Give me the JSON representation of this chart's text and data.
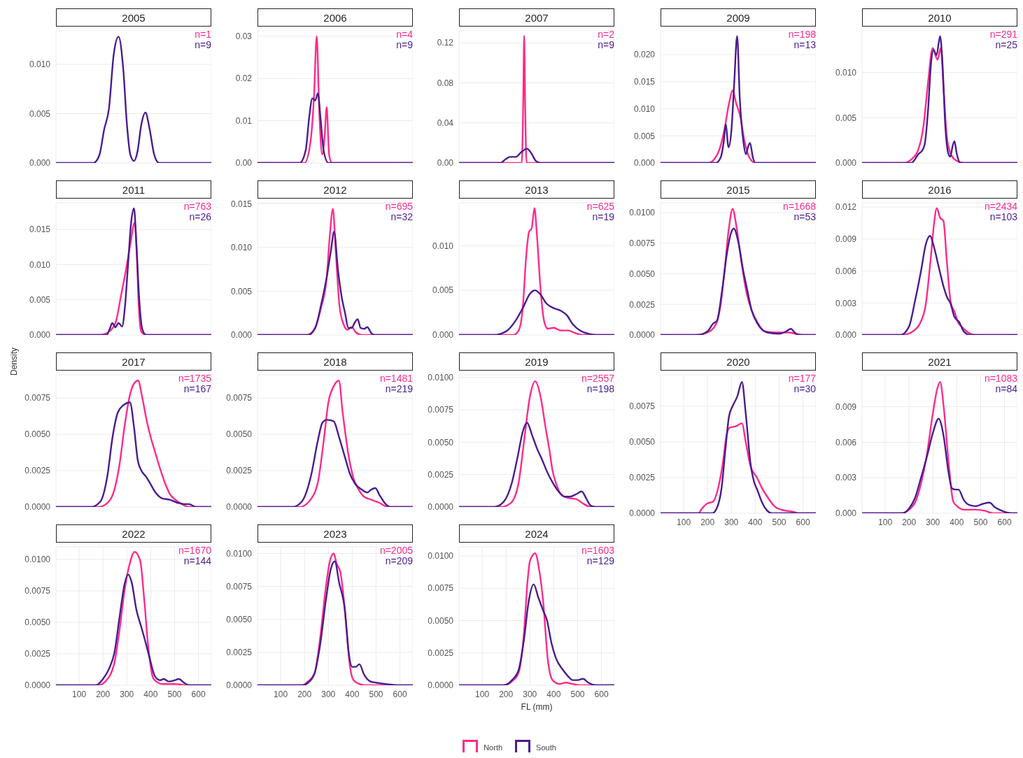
{
  "chart_data": [
    {
      "type": "line",
      "title": "2005",
      "annotations": [
        "n=1",
        "n=9"
      ],
      "xlim": [
        3,
        654
      ],
      "xticks": [
        100,
        200,
        300,
        400,
        500,
        600
      ],
      "ylim": [
        0,
        0.0134
      ],
      "yticks": [
        {
          "value": 0,
          "label": "0.000"
        },
        {
          "value": 0.005,
          "label": "0.005"
        },
        {
          "value": 0.01,
          "label": "0.010"
        }
      ],
      "tick_labels": "y",
      "grid": true,
      "series": [
        {
          "color": "#ff2a8a"
        },
        {
          "color": "#4a1c91",
          "x": [
            3,
            160,
            185,
            205,
            225,
            245,
            265,
            285,
            300,
            315,
            330,
            345,
            360,
            378,
            395,
            415,
            435,
            654
          ],
          "values": [
            0,
            0,
            0.0008,
            0.0034,
            0.0055,
            0.011,
            0.0128,
            0.0095,
            0.004,
            0.0008,
            0.0002,
            0.0012,
            0.0038,
            0.0051,
            0.0035,
            0.0008,
            0,
            0
          ]
        }
      ]
    },
    {
      "type": "line",
      "title": "2006",
      "annotations": [
        "n=4",
        "n=9"
      ],
      "xlim": [
        3,
        654
      ],
      "xticks": [
        100,
        200,
        300,
        400,
        500,
        600
      ],
      "ylim": [
        0,
        0.0313
      ],
      "yticks": [
        {
          "value": 0,
          "label": "0.00"
        },
        {
          "value": 0.01,
          "label": "0.01"
        },
        {
          "value": 0.02,
          "label": "0.02"
        },
        {
          "value": 0.03,
          "label": "0.03"
        }
      ],
      "tick_labels": "y",
      "grid": true,
      "series": [
        {
          "color": "#ff2a8a",
          "x": [
            3,
            200,
            225,
            240,
            251,
            262,
            274,
            284,
            293,
            303,
            315,
            654
          ],
          "values": [
            0,
            0,
            0.005,
            0.016,
            0.03,
            0.012,
            0.002,
            0.006,
            0.0132,
            0.002,
            0,
            0
          ]
        },
        {
          "color": "#4a1c91",
          "x": [
            3,
            180,
            205,
            220,
            233,
            245,
            256,
            268,
            280,
            300,
            654
          ],
          "values": [
            0,
            0,
            0.003,
            0.011,
            0.0153,
            0.0148,
            0.0165,
            0.01,
            0.003,
            0,
            0
          ]
        }
      ]
    },
    {
      "type": "line",
      "title": "2007",
      "annotations": [
        "n=2",
        "n=9"
      ],
      "xlim": [
        3,
        654
      ],
      "xticks": [
        100,
        200,
        300,
        400,
        500,
        600
      ],
      "ylim": [
        0,
        0.132
      ],
      "yticks": [
        {
          "value": 0,
          "label": "0.00"
        },
        {
          "value": 0.04,
          "label": "0.04"
        },
        {
          "value": 0.08,
          "label": "0.08"
        },
        {
          "value": 0.12,
          "label": "0.12"
        }
      ],
      "tick_labels": "y",
      "grid": true,
      "series": [
        {
          "color": "#ff2a8a",
          "x": [
            3,
            266,
            272,
            276,
            280,
            286,
            654
          ],
          "values": [
            0,
            0,
            0.06,
            0.127,
            0.06,
            0,
            0
          ]
        },
        {
          "color": "#4a1c91",
          "x": [
            3,
            175,
            200,
            216,
            240,
            265,
            288,
            305,
            325,
            345,
            654
          ],
          "values": [
            0,
            0,
            0.004,
            0.006,
            0.006,
            0.011,
            0.0142,
            0.01,
            0.002,
            0,
            0
          ]
        }
      ]
    },
    {
      "type": "line",
      "title": "2009",
      "annotations": [
        "n=198",
        "n=13"
      ],
      "xlim": [
        3,
        654
      ],
      "xticks": [
        100,
        200,
        300,
        400,
        500,
        600
      ],
      "ylim": [
        0,
        0.0244
      ],
      "yticks": [
        {
          "value": 0,
          "label": "0.000"
        },
        {
          "value": 0.005,
          "label": "0.005"
        },
        {
          "value": 0.01,
          "label": "0.010"
        },
        {
          "value": 0.015,
          "label": "0.015"
        },
        {
          "value": 0.02,
          "label": "0.020"
        }
      ],
      "tick_labels": "y",
      "grid": true,
      "series": [
        {
          "color": "#ff2a8a",
          "x": [
            3,
            205,
            230,
            250,
            270,
            290,
            305,
            320,
            336,
            355,
            375,
            400,
            654
          ],
          "values": [
            0,
            0,
            0.0008,
            0.0025,
            0.006,
            0.011,
            0.0134,
            0.011,
            0.0088,
            0.004,
            0.001,
            0,
            0
          ]
        },
        {
          "color": "#4a1c91",
          "x": [
            3,
            235,
            255,
            268,
            276,
            288,
            300,
            312,
            324,
            335,
            350,
            361,
            370,
            378,
            390,
            400,
            654
          ],
          "values": [
            0,
            0,
            0.001,
            0.004,
            0.0071,
            0.0029,
            0.006,
            0.015,
            0.0234,
            0.012,
            0.004,
            0.0016,
            0.003,
            0.0037,
            0.001,
            0,
            0
          ]
        }
      ]
    },
    {
      "type": "line",
      "title": "2010",
      "annotations": [
        "n=291",
        "n=25"
      ],
      "xlim": [
        3,
        654
      ],
      "xticks": [
        100,
        200,
        300,
        400,
        500,
        600
      ],
      "ylim": [
        0,
        0.0146
      ],
      "yticks": [
        {
          "value": 0,
          "label": "0.000"
        },
        {
          "value": 0.005,
          "label": "0.005"
        },
        {
          "value": 0.01,
          "label": "0.010"
        }
      ],
      "tick_labels": "y",
      "grid": true,
      "series": [
        {
          "color": "#ff2a8a",
          "x": [
            3,
            180,
            210,
            239,
            260,
            280,
            299,
            319,
            333,
            345,
            358,
            373,
            395,
            430,
            654
          ],
          "values": [
            0,
            0,
            0.0004,
            0.0015,
            0.004,
            0.009,
            0.0127,
            0.0114,
            0.0127,
            0.008,
            0.003,
            0.0011,
            0.0003,
            0,
            0
          ]
        },
        {
          "color": "#4a1c91",
          "x": [
            3,
            210,
            240,
            253,
            265,
            280,
            292,
            302,
            315,
            330,
            340,
            352,
            365,
            373,
            382,
            390,
            400,
            415,
            654
          ],
          "values": [
            0,
            0,
            0.001,
            0.0013,
            0.002,
            0.006,
            0.011,
            0.0125,
            0.0119,
            0.014,
            0.011,
            0.004,
            0.001,
            0.0007,
            0.0018,
            0.0024,
            0.001,
            0,
            0
          ]
        }
      ]
    },
    {
      "type": "line",
      "title": "2011",
      "annotations": [
        "n=763",
        "n=26"
      ],
      "xlim": [
        3,
        654
      ],
      "xticks": [
        100,
        200,
        300,
        400,
        500,
        600
      ],
      "ylim": [
        0,
        0.0188
      ],
      "yticks": [
        {
          "value": 0,
          "label": "0.000"
        },
        {
          "value": 0.005,
          "label": "0.005"
        },
        {
          "value": 0.01,
          "label": "0.010"
        },
        {
          "value": 0.015,
          "label": "0.015"
        }
      ],
      "tick_labels": "y",
      "grid": true,
      "series": [
        {
          "color": "#ff2a8a",
          "x": [
            3,
            190,
            230,
            255,
            275,
            295,
            315,
            333,
            342,
            350,
            360,
            380,
            654
          ],
          "values": [
            0,
            0,
            0.0006,
            0.002,
            0.0055,
            0.009,
            0.013,
            0.016,
            0.011,
            0.004,
            0.0005,
            0,
            0
          ]
        },
        {
          "color": "#4a1c91",
          "x": [
            3,
            215,
            230,
            239,
            252,
            265,
            280,
            292,
            305,
            318,
            330,
            340,
            352,
            365,
            380,
            654
          ],
          "values": [
            0,
            0,
            0.001,
            0.0017,
            0.0011,
            0.0017,
            0.0012,
            0.004,
            0.01,
            0.016,
            0.018,
            0.013,
            0.005,
            0.0008,
            0,
            0
          ]
        }
      ]
    },
    {
      "type": "line",
      "title": "2012",
      "annotations": [
        "n=695",
        "n=32"
      ],
      "xlim": [
        3,
        654
      ],
      "xticks": [
        100,
        200,
        300,
        400,
        500,
        600
      ],
      "ylim": [
        0,
        0.0151
      ],
      "yticks": [
        {
          "value": 0,
          "label": "0.000"
        },
        {
          "value": 0.005,
          "label": "0.005"
        },
        {
          "value": 0.01,
          "label": "0.010"
        },
        {
          "value": 0.015,
          "label": "0.015"
        }
      ],
      "tick_labels": "y",
      "grid": true,
      "series": [
        {
          "color": "#ff2a8a",
          "x": [
            3,
            210,
            240,
            270,
            293,
            305,
            319,
            330,
            347,
            364,
            380,
            398,
            415,
            440,
            654
          ],
          "values": [
            0,
            0,
            0.0006,
            0.0032,
            0.0065,
            0.011,
            0.0144,
            0.01,
            0.0032,
            0.0012,
            0.0006,
            0.0009,
            0.0003,
            0,
            0
          ]
        },
        {
          "color": "#4a1c91",
          "x": [
            3,
            215,
            245,
            270,
            293,
            310,
            324,
            340,
            356,
            370,
            384,
            398,
            410,
            423,
            435,
            450,
            463,
            480,
            495,
            654
          ],
          "values": [
            0,
            0,
            0.0008,
            0.0035,
            0.0066,
            0.0095,
            0.0118,
            0.0075,
            0.0043,
            0.0025,
            0.0008,
            0.0008,
            0.0014,
            0.0018,
            0.0008,
            0.0007,
            0.0009,
            0.0002,
            0,
            0
          ]
        }
      ]
    },
    {
      "type": "line",
      "title": "2013",
      "annotations": [
        "n=625",
        "n=19"
      ],
      "xlim": [
        3,
        654
      ],
      "xticks": [
        100,
        200,
        300,
        400,
        500,
        600
      ],
      "ylim": [
        0,
        0.0148
      ],
      "yticks": [
        {
          "value": 0,
          "label": "0.000"
        },
        {
          "value": 0.005,
          "label": "0.005"
        },
        {
          "value": 0.01,
          "label": "0.010"
        }
      ],
      "tick_labels": "y",
      "grid": true,
      "series": [
        {
          "color": "#ff2a8a",
          "x": [
            3,
            230,
            253,
            270,
            285,
            296,
            308,
            319,
            330,
            345,
            360,
            375,
            400,
            430,
            460,
            490,
            520,
            654
          ],
          "values": [
            0,
            0,
            0.0005,
            0.003,
            0.009,
            0.0115,
            0.012,
            0.0142,
            0.011,
            0.005,
            0.0015,
            0.0007,
            0.0008,
            0.0005,
            0.0005,
            0.0002,
            0,
            0
          ]
        },
        {
          "color": "#4a1c91",
          "x": [
            3,
            150,
            200,
            240,
            270,
            300,
            322,
            345,
            370,
            400,
            430,
            455,
            480,
            510,
            550,
            580,
            654
          ],
          "values": [
            0,
            0,
            0.0004,
            0.0016,
            0.003,
            0.0046,
            0.005,
            0.0045,
            0.0035,
            0.003,
            0.0027,
            0.0022,
            0.0012,
            0.0005,
            0.0001,
            0,
            0
          ]
        }
      ]
    },
    {
      "type": "line",
      "title": "2015",
      "annotations": [
        "n=1668",
        "n=53"
      ],
      "xlim": [
        3,
        654
      ],
      "xticks": [
        100,
        200,
        300,
        400,
        500,
        600
      ],
      "ylim": [
        0,
        0.0108
      ],
      "yticks": [
        {
          "value": 0,
          "label": "0.0000"
        },
        {
          "value": 0.0025,
          "label": "0.0025"
        },
        {
          "value": 0.005,
          "label": "0.0050"
        },
        {
          "value": 0.0075,
          "label": "0.0075"
        },
        {
          "value": 0.01,
          "label": "0.0100"
        }
      ],
      "tick_labels": "y",
      "grid": true,
      "series": [
        {
          "color": "#ff2a8a",
          "x": [
            3,
            150,
            200,
            236,
            255,
            270,
            288,
            305,
            320,
            340,
            364,
            385,
            407,
            440,
            480,
            540,
            570,
            600,
            654
          ],
          "values": [
            0,
            0,
            0.0002,
            0.0009,
            0.0025,
            0.005,
            0.0085,
            0.0103,
            0.009,
            0.0062,
            0.0034,
            0.002,
            0.0011,
            0.0003,
            0.0002,
            0.0002,
            0.0001,
            0,
            0
          ]
        },
        {
          "color": "#4a1c91",
          "x": [
            3,
            160,
            200,
            222,
            240,
            260,
            280,
            298,
            310,
            330,
            350,
            364,
            385,
            410,
            450,
            500,
            530,
            549,
            565,
            580,
            654
          ],
          "values": [
            0,
            0,
            0.0003,
            0.0009,
            0.0012,
            0.0035,
            0.0065,
            0.0083,
            0.0087,
            0.0075,
            0.0052,
            0.0039,
            0.002,
            0.0009,
            0.0002,
            0.0001,
            0.0003,
            0.0005,
            0.0002,
            0,
            0
          ]
        }
      ]
    },
    {
      "type": "line",
      "title": "2016",
      "annotations": [
        "n=2434",
        "n=103"
      ],
      "xlim": [
        3,
        654
      ],
      "xticks": [
        100,
        200,
        300,
        400,
        500,
        600
      ],
      "ylim": [
        0,
        0.0124
      ],
      "yticks": [
        {
          "value": 0,
          "label": "0.000"
        },
        {
          "value": 0.003,
          "label": "0.003"
        },
        {
          "value": 0.006,
          "label": "0.006"
        },
        {
          "value": 0.009,
          "label": "0.009"
        },
        {
          "value": 0.012,
          "label": "0.012"
        }
      ],
      "tick_labels": "y",
      "grid": true,
      "series": [
        {
          "color": "#ff2a8a",
          "x": [
            3,
            170,
            220,
            250,
            268,
            290,
            305,
            316,
            330,
            344,
            358,
            375,
            390,
            405,
            424,
            450,
            480,
            654
          ],
          "values": [
            0,
            0,
            0.0004,
            0.0013,
            0.0026,
            0.007,
            0.0105,
            0.0119,
            0.011,
            0.0107,
            0.007,
            0.003,
            0.0022,
            0.0012,
            0.0007,
            0.0002,
            0,
            0
          ]
        },
        {
          "color": "#4a1c91",
          "x": [
            3,
            165,
            200,
            225,
            250,
            270,
            288,
            305,
            324,
            345,
            360,
            373,
            390,
            410,
            430,
            455,
            654
          ],
          "values": [
            0,
            0,
            0.0008,
            0.0032,
            0.006,
            0.0085,
            0.0093,
            0.0082,
            0.0064,
            0.0045,
            0.0035,
            0.003,
            0.0017,
            0.0012,
            0.0003,
            0,
            0
          ]
        }
      ]
    },
    {
      "type": "line",
      "title": "2017",
      "ylabel": "Density",
      "annotations": [
        "n=1735",
        "n=167"
      ],
      "xlim": [
        3,
        654
      ],
      "xticks": [
        100,
        200,
        300,
        400,
        500,
        600
      ],
      "ylim": [
        0,
        0.0091
      ],
      "yticks": [
        {
          "value": 0,
          "label": "0.0000"
        },
        {
          "value": 0.0025,
          "label": "0.0025"
        },
        {
          "value": 0.005,
          "label": "0.0050"
        },
        {
          "value": 0.0075,
          "label": "0.0075"
        }
      ],
      "tick_labels": "y",
      "grid": true,
      "series": [
        {
          "color": "#ff2a8a",
          "x": [
            3,
            180,
            220,
            248,
            270,
            290,
            310,
            330,
            347,
            365,
            385,
            400,
            418,
            440,
            461,
            480,
            503,
            530,
            560,
            654
          ],
          "values": [
            0,
            0,
            0.0003,
            0.0012,
            0.003,
            0.0055,
            0.0075,
            0.0085,
            0.0087,
            0.0075,
            0.0058,
            0.0048,
            0.0038,
            0.0026,
            0.0016,
            0.0009,
            0.0005,
            0.0002,
            0,
            0
          ]
        },
        {
          "color": "#4a1c91",
          "x": [
            3,
            150,
            190,
            219,
            240,
            262,
            285,
            313,
            330,
            345,
            361,
            380,
            395,
            420,
            447,
            480,
            510,
            540,
            560,
            590,
            654
          ],
          "values": [
            0,
            0,
            0.0004,
            0.0022,
            0.0048,
            0.0065,
            0.007,
            0.0072,
            0.0055,
            0.0033,
            0.0025,
            0.0021,
            0.0017,
            0.001,
            0.0006,
            0.0005,
            0.0003,
            0.0002,
            0.0002,
            0,
            0
          ]
        }
      ]
    },
    {
      "type": "line",
      "title": "2018",
      "annotations": [
        "n=1481",
        "n=219"
      ],
      "xlim": [
        3,
        654
      ],
      "xticks": [
        100,
        200,
        300,
        400,
        500,
        600
      ],
      "ylim": [
        0,
        0.0091
      ],
      "yticks": [
        {
          "value": 0,
          "label": "0.0000"
        },
        {
          "value": 0.0025,
          "label": "0.0025"
        },
        {
          "value": 0.005,
          "label": "0.0050"
        },
        {
          "value": 0.0075,
          "label": "0.0075"
        }
      ],
      "tick_labels": "y",
      "grid": true,
      "series": [
        {
          "color": "#ff2a8a",
          "x": [
            3,
            180,
            220,
            256,
            280,
            300,
            322,
            344,
            360,
            384,
            405,
            427,
            450,
            480,
            512,
            550,
            654
          ],
          "values": [
            0,
            0,
            0.0004,
            0.0017,
            0.0045,
            0.0072,
            0.0083,
            0.0087,
            0.0065,
            0.0036,
            0.002,
            0.0012,
            0.0007,
            0.0005,
            0.0003,
            0,
            0
          ]
        },
        {
          "color": "#4a1c91",
          "x": [
            3,
            150,
            190,
            228,
            255,
            275,
            293,
            322,
            345,
            370,
            390,
            412,
            440,
            463,
            480,
            497,
            515,
            540,
            560,
            654
          ],
          "values": [
            0,
            0,
            0.0004,
            0.0022,
            0.0045,
            0.0058,
            0.006,
            0.0059,
            0.0048,
            0.0034,
            0.0023,
            0.0016,
            0.0012,
            0.001,
            0.0012,
            0.0013,
            0.0008,
            0.0002,
            0,
            0
          ]
        }
      ]
    },
    {
      "type": "line",
      "title": "2019",
      "annotations": [
        "n=2557",
        "n=198"
      ],
      "xlim": [
        3,
        654
      ],
      "xticks": [
        100,
        200,
        300,
        400,
        500,
        600
      ],
      "ylim": [
        0,
        0.0102
      ],
      "yticks": [
        {
          "value": 0,
          "label": "0.0000"
        },
        {
          "value": 0.0025,
          "label": "0.0025"
        },
        {
          "value": 0.005,
          "label": "0.0050"
        },
        {
          "value": 0.0075,
          "label": "0.0075"
        },
        {
          "value": 0.01,
          "label": "0.0100"
        }
      ],
      "tick_labels": "y",
      "grid": true,
      "series": [
        {
          "color": "#ff2a8a",
          "x": [
            3,
            180,
            220,
            253,
            275,
            300,
            322,
            345,
            365,
            381,
            395,
            410,
            430,
            460,
            495,
            520,
            555,
            654
          ],
          "values": [
            0,
            0,
            0.0003,
            0.0019,
            0.005,
            0.0085,
            0.0097,
            0.0085,
            0.0062,
            0.0045,
            0.0028,
            0.0018,
            0.001,
            0.0007,
            0.0006,
            0.0003,
            0,
            0
          ]
        },
        {
          "color": "#4a1c91",
          "x": [
            3,
            150,
            190,
            225,
            250,
            270,
            288,
            310,
            330,
            350,
            370,
            395,
            420,
            445,
            470,
            495,
            517,
            535,
            555,
            575,
            654
          ],
          "values": [
            0,
            0,
            0.0004,
            0.0019,
            0.004,
            0.0058,
            0.0065,
            0.0055,
            0.0045,
            0.0037,
            0.0028,
            0.0019,
            0.0012,
            0.0008,
            0.0008,
            0.001,
            0.0012,
            0.0007,
            0.0001,
            0,
            0
          ]
        }
      ]
    },
    {
      "type": "line",
      "title": "2020",
      "annotations": [
        "n=177",
        "n=30"
      ],
      "xlim": [
        3,
        654
      ],
      "xticks": [
        100,
        200,
        300,
        400,
        500,
        600
      ],
      "ylim": [
        0,
        0.0097
      ],
      "yticks": [
        {
          "value": 0,
          "label": "0.0000"
        },
        {
          "value": 0.0025,
          "label": "0.0025"
        },
        {
          "value": 0.005,
          "label": "0.0050"
        },
        {
          "value": 0.0075,
          "label": "0.0075"
        }
      ],
      "grid": true,
      "series": [
        {
          "color": "#ff2a8a",
          "x": [
            3,
            160,
            180,
            200,
            222,
            245,
            264,
            280,
            293,
            320,
            344,
            360,
            380,
            407,
            430,
            449,
            480,
            520,
            560,
            580,
            654
          ],
          "values": [
            0,
            0,
            0.0004,
            0.0007,
            0.0008,
            0.0018,
            0.0035,
            0.0055,
            0.006,
            0.0061,
            0.0063,
            0.005,
            0.0033,
            0.0025,
            0.0017,
            0.0012,
            0.0005,
            0.0002,
            0.0001,
            0,
            0
          ]
        },
        {
          "color": "#4a1c91",
          "x": [
            3,
            220,
            240,
            259,
            275,
            290,
            305,
            325,
            344,
            360,
            380,
            395,
            407,
            430,
            449,
            470,
            654
          ],
          "values": [
            0,
            0,
            0.0004,
            0.0018,
            0.0045,
            0.0068,
            0.0075,
            0.0082,
            0.0092,
            0.007,
            0.0035,
            0.0022,
            0.0017,
            0.0007,
            0.0002,
            0,
            0
          ]
        }
      ]
    },
    {
      "type": "line",
      "title": "2021",
      "annotations": [
        "n=1083",
        "n=84"
      ],
      "xlim": [
        3,
        654
      ],
      "xticks": [
        100,
        200,
        300,
        400,
        500,
        600
      ],
      "ylim": [
        0,
        0.0117
      ],
      "yticks": [
        {
          "value": 0,
          "label": "0.000"
        },
        {
          "value": 0.003,
          "label": "0.003"
        },
        {
          "value": 0.006,
          "label": "0.006"
        },
        {
          "value": 0.009,
          "label": "0.009"
        }
      ],
      "grid": true,
      "series": [
        {
          "color": "#ff2a8a",
          "x": [
            3,
            170,
            200,
            225,
            250,
            275,
            300,
            318,
            330,
            345,
            367,
            385,
            401,
            430,
            480,
            520,
            550,
            654
          ],
          "values": [
            0,
            0,
            0.0003,
            0.0009,
            0.0025,
            0.005,
            0.0085,
            0.0105,
            0.0111,
            0.009,
            0.004,
            0.001,
            0.0006,
            0.0003,
            0.0003,
            0.0002,
            0,
            0
          ]
        },
        {
          "color": "#4a1c91",
          "x": [
            3,
            170,
            200,
            225,
            250,
            275,
            300,
            324,
            345,
            365,
            380,
            395,
            407,
            430,
            452,
            480,
            510,
            537,
            560,
            590,
            630,
            654
          ],
          "values": [
            0,
            0,
            0.0004,
            0.0013,
            0.003,
            0.0048,
            0.0068,
            0.008,
            0.0065,
            0.0035,
            0.0021,
            0.002,
            0.002,
            0.0011,
            0.0007,
            0.0006,
            0.0008,
            0.0009,
            0.0005,
            0.0002,
            0,
            0
          ]
        }
      ]
    },
    {
      "type": "line",
      "title": "2022",
      "annotations": [
        "n=1670",
        "n=144"
      ],
      "xlim": [
        3,
        654
      ],
      "xticks": [
        100,
        200,
        300,
        400,
        500,
        600
      ],
      "ylim": [
        0,
        0.011
      ],
      "yticks": [
        {
          "value": 0,
          "label": "0.0000"
        },
        {
          "value": 0.0025,
          "label": "0.0025"
        },
        {
          "value": 0.005,
          "label": "0.0050"
        },
        {
          "value": 0.0075,
          "label": "0.0075"
        },
        {
          "value": 0.01,
          "label": "0.0100"
        }
      ],
      "grid": true,
      "series": [
        {
          "color": "#ff2a8a",
          "x": [
            3,
            180,
            210,
            248,
            270,
            290,
            310,
            333,
            356,
            372,
            390,
            412,
            450,
            500,
            560,
            654
          ],
          "values": [
            0,
            0,
            0.0003,
            0.0018,
            0.0045,
            0.0075,
            0.0095,
            0.0106,
            0.0099,
            0.007,
            0.003,
            0.0005,
            0.0001,
            0.0001,
            0,
            0
          ]
        },
        {
          "color": "#4a1c91",
          "x": [
            3,
            170,
            200,
            225,
            248,
            270,
            290,
            305,
            320,
            340,
            361,
            380,
            395,
            418,
            440,
            455,
            475,
            500,
            518,
            540,
            560,
            654
          ],
          "values": [
            0,
            0,
            0.0005,
            0.0013,
            0.0026,
            0.0055,
            0.008,
            0.0088,
            0.0082,
            0.006,
            0.0046,
            0.0033,
            0.0022,
            0.0007,
            0.0004,
            0.0005,
            0.0003,
            0.0004,
            0.0005,
            0.0002,
            0,
            0
          ]
        }
      ]
    },
    {
      "type": "line",
      "title": "2023",
      "annotations": [
        "n=2005",
        "n=209"
      ],
      "xlim": [
        3,
        654
      ],
      "xticks": [
        100,
        200,
        300,
        400,
        500,
        600
      ],
      "ylim": [
        0,
        0.0105
      ],
      "yticks": [
        {
          "value": 0,
          "label": "0.0000"
        },
        {
          "value": 0.0025,
          "label": "0.0025"
        },
        {
          "value": 0.005,
          "label": "0.0050"
        },
        {
          "value": 0.0075,
          "label": "0.0075"
        },
        {
          "value": 0.01,
          "label": "0.0100"
        }
      ],
      "grid": true,
      "series": [
        {
          "color": "#ff2a8a",
          "x": [
            3,
            190,
            215,
            242,
            265,
            290,
            305,
            322,
            335,
            350,
            362,
            378,
            390,
            405,
            430,
            455,
            654
          ],
          "values": [
            0,
            0,
            0.0003,
            0.0009,
            0.0035,
            0.0075,
            0.0093,
            0.01,
            0.0092,
            0.0086,
            0.007,
            0.0038,
            0.0015,
            0.0004,
            0.0001,
            0,
            0
          ]
        },
        {
          "color": "#4a1c91",
          "x": [
            3,
            190,
            215,
            242,
            265,
            290,
            310,
            327,
            345,
            370,
            385,
            400,
            415,
            430,
            450,
            475,
            500,
            540,
            600,
            654
          ],
          "values": [
            0,
            0,
            0.0002,
            0.0009,
            0.003,
            0.0065,
            0.0088,
            0.0094,
            0.0078,
            0.0056,
            0.0025,
            0.0014,
            0.0014,
            0.0016,
            0.0008,
            0.0003,
            0.0002,
            0.0001,
            0,
            0
          ]
        }
      ]
    },
    {
      "type": "line",
      "title": "2024",
      "xlabel": "FL (mm)",
      "legend": "bottom",
      "annotations": [
        "n=1603",
        "n=129"
      ],
      "xlim": [
        3,
        654
      ],
      "xticks": [
        100,
        200,
        300,
        400,
        500,
        600
      ],
      "ylim": [
        0,
        0.0107
      ],
      "yticks": [
        {
          "value": 0,
          "label": "0.0000"
        },
        {
          "value": 0.0025,
          "label": "0.0025"
        },
        {
          "value": 0.005,
          "label": "0.0050"
        },
        {
          "value": 0.0075,
          "label": "0.0075"
        },
        {
          "value": 0.01,
          "label": "0.0100"
        }
      ],
      "grid": true,
      "series": [
        {
          "name": "North",
          "color": "#ff2a8a",
          "x": [
            3,
            190,
            225,
            253,
            275,
            290,
            299,
            310,
            322,
            340,
            355,
            375,
            395,
            425,
            450,
            480,
            510,
            654
          ],
          "values": [
            0,
            0,
            0.0003,
            0.001,
            0.004,
            0.008,
            0.0095,
            0.01,
            0.0102,
            0.0088,
            0.0066,
            0.002,
            0.0004,
            0.0001,
            0.0002,
            0.0001,
            0,
            0
          ]
        },
        {
          "name": "South",
          "color": "#4a1c91",
          "x": [
            3,
            190,
            225,
            253,
            275,
            295,
            316,
            335,
            355,
            372,
            390,
            409,
            438,
            460,
            480,
            500,
            523,
            545,
            580,
            654
          ],
          "values": [
            0,
            0,
            0.0004,
            0.0012,
            0.0035,
            0.0065,
            0.0078,
            0.0068,
            0.0058,
            0.005,
            0.0033,
            0.0021,
            0.0012,
            0.0007,
            0.0004,
            0.0004,
            0.0005,
            0.0002,
            0,
            0
          ]
        }
      ]
    }
  ]
}
